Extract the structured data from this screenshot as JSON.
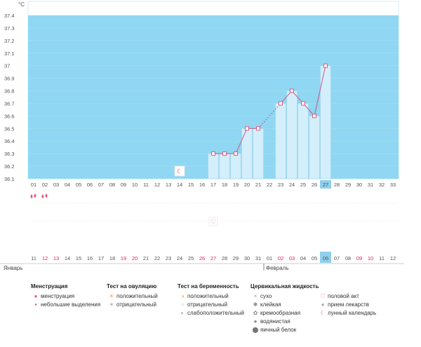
{
  "chart_data": {
    "type": "bar",
    "unit": "°C",
    "ylim": [
      36.1,
      37.4
    ],
    "y_ticks": [
      "37.4",
      "37.3",
      "37.2",
      "37.1",
      "37",
      "36.9",
      "36.8",
      "36.7",
      "36.6",
      "36.5",
      "36.4",
      "36.3",
      "36.2",
      "36.1"
    ],
    "cycle_days": [
      "01",
      "02",
      "03",
      "04",
      "05",
      "06",
      "07",
      "08",
      "09",
      "10",
      "11",
      "12",
      "13",
      "14",
      "15",
      "16",
      "17",
      "18",
      "19",
      "20",
      "21",
      "22",
      "23",
      "24",
      "25",
      "26",
      "27",
      "28",
      "29",
      "30",
      "31",
      "32",
      "33"
    ],
    "calendar_dates": [
      "11",
      "12",
      "13",
      "14",
      "15",
      "16",
      "17",
      "18",
      "19",
      "20",
      "21",
      "22",
      "23",
      "24",
      "25",
      "26",
      "27",
      "28",
      "29",
      "30",
      "31",
      "01",
      "02",
      "03",
      "04",
      "05",
      "06",
      "07",
      "08",
      "09",
      "10",
      "11",
      "12"
    ],
    "red_dates_idx": [
      1,
      2,
      8,
      9,
      15,
      16,
      22,
      23,
      29,
      30
    ],
    "today_idx": 26,
    "months": [
      {
        "label": "Январь",
        "start_idx": 0
      },
      {
        "label": "Февраль",
        "start_idx": 21
      }
    ],
    "temperatures": [
      null,
      null,
      null,
      null,
      null,
      null,
      null,
      null,
      null,
      null,
      null,
      null,
      null,
      null,
      null,
      null,
      36.3,
      36.3,
      36.3,
      36.5,
      36.5,
      null,
      36.7,
      36.8,
      36.7,
      36.6,
      37.0,
      null,
      null,
      null,
      null,
      null,
      null
    ],
    "bars_idx": [
      16,
      17,
      18,
      19,
      20,
      22,
      23,
      24,
      25,
      26
    ],
    "dashed_segments": [
      [
        20,
        22
      ]
    ],
    "events": {
      "menstruation_idx": [
        0,
        1
      ],
      "lunar_idx": [
        13
      ],
      "intercourse_idx": [
        16
      ]
    }
  },
  "legend": {
    "menstruation": {
      "title": "Менструация",
      "items": [
        "менструация",
        "небольшие выделения"
      ]
    },
    "ovulation": {
      "title": "Тест на овуляцию",
      "items": [
        "положительный",
        "отрицательный"
      ]
    },
    "pregnancy": {
      "title": "Тест на беременность",
      "items": [
        "положительный",
        "отрицательный",
        "слабоположительный"
      ]
    },
    "mucus": {
      "title": "Цервикальная жидкость",
      "items": [
        "сухо",
        "клейкая",
        "кремообразная",
        "водянистая",
        "яичный белок"
      ]
    },
    "other": {
      "items": [
        "половой акт",
        "прием лекарств",
        "лунный календарь"
      ]
    }
  },
  "colors": {
    "zone": "#8fd7f2",
    "bar": "#d3effb",
    "bar_border": "#9ed3ec",
    "line": "#c9587e",
    "point": "#e2577e",
    "today": "#8fd0ec",
    "red_text": "#e0245e"
  }
}
